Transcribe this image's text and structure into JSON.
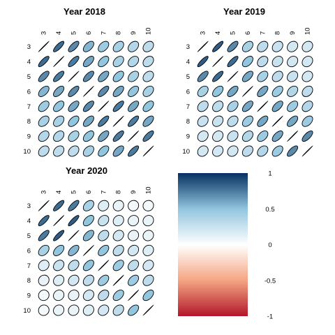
{
  "chart_data": [
    {
      "type": "heatmap",
      "title": "Year 2018",
      "variables": [
        "3",
        "4",
        "5",
        "6",
        "7",
        "8",
        "9",
        "10"
      ],
      "correlation_matrix": [
        [
          1.0,
          0.8,
          0.7,
          0.55,
          0.45,
          0.4,
          0.35,
          0.3
        ],
        [
          0.8,
          1.0,
          0.75,
          0.6,
          0.5,
          0.4,
          0.35,
          0.3
        ],
        [
          0.7,
          0.75,
          1.0,
          0.7,
          0.6,
          0.5,
          0.4,
          0.3
        ],
        [
          0.55,
          0.6,
          0.7,
          1.0,
          0.7,
          0.6,
          0.5,
          0.4
        ],
        [
          0.45,
          0.5,
          0.6,
          0.7,
          1.0,
          0.75,
          0.6,
          0.5
        ],
        [
          0.4,
          0.4,
          0.5,
          0.6,
          0.75,
          1.0,
          0.75,
          0.6
        ],
        [
          0.35,
          0.35,
          0.4,
          0.5,
          0.6,
          0.75,
          1.0,
          0.75
        ],
        [
          0.3,
          0.3,
          0.3,
          0.4,
          0.5,
          0.6,
          0.75,
          1.0
        ]
      ]
    },
    {
      "type": "heatmap",
      "title": "Year 2019",
      "variables": [
        "3",
        "4",
        "5",
        "6",
        "7",
        "8",
        "9",
        "10"
      ],
      "correlation_matrix": [
        [
          1.0,
          0.85,
          0.7,
          0.4,
          0.3,
          0.25,
          0.2,
          0.2
        ],
        [
          0.85,
          1.0,
          0.8,
          0.5,
          0.3,
          0.25,
          0.2,
          0.2
        ],
        [
          0.7,
          0.8,
          1.0,
          0.6,
          0.4,
          0.3,
          0.25,
          0.2
        ],
        [
          0.4,
          0.5,
          0.6,
          1.0,
          0.6,
          0.45,
          0.35,
          0.3
        ],
        [
          0.3,
          0.3,
          0.4,
          0.6,
          1.0,
          0.6,
          0.45,
          0.35
        ],
        [
          0.25,
          0.25,
          0.3,
          0.45,
          0.6,
          1.0,
          0.6,
          0.45
        ],
        [
          0.2,
          0.2,
          0.25,
          0.35,
          0.45,
          0.6,
          1.0,
          0.7
        ],
        [
          0.2,
          0.2,
          0.2,
          0.3,
          0.35,
          0.45,
          0.7,
          1.0
        ]
      ]
    },
    {
      "type": "heatmap",
      "title": "Year 2020",
      "variables": [
        "3",
        "4",
        "5",
        "6",
        "7",
        "8",
        "9",
        "10"
      ],
      "correlation_matrix": [
        [
          1.0,
          0.8,
          0.75,
          0.4,
          0.15,
          0.1,
          0.05,
          0.05
        ],
        [
          0.8,
          1.0,
          0.85,
          0.5,
          0.25,
          0.15,
          0.1,
          0.1
        ],
        [
          0.75,
          0.85,
          1.0,
          0.55,
          0.3,
          0.2,
          0.1,
          0.1
        ],
        [
          0.4,
          0.5,
          0.55,
          1.0,
          0.5,
          0.3,
          0.2,
          0.15
        ],
        [
          0.15,
          0.25,
          0.3,
          0.5,
          1.0,
          0.45,
          0.3,
          0.2
        ],
        [
          0.1,
          0.15,
          0.2,
          0.3,
          0.45,
          1.0,
          0.45,
          0.3
        ],
        [
          0.05,
          0.1,
          0.1,
          0.2,
          0.3,
          0.45,
          1.0,
          0.5
        ],
        [
          0.05,
          0.1,
          0.1,
          0.15,
          0.2,
          0.3,
          0.5,
          1.0
        ]
      ]
    },
    {
      "type": "colorbar",
      "range": [
        -1,
        1
      ],
      "ticks": [
        "1",
        "0.5",
        "0",
        "-0.5",
        "-1"
      ],
      "colors": {
        "low": "#b2182b",
        "mid_low": "#f4a582",
        "mid": "#ffffff",
        "mid_high": "#92c5de",
        "high": "#053061"
      }
    }
  ]
}
